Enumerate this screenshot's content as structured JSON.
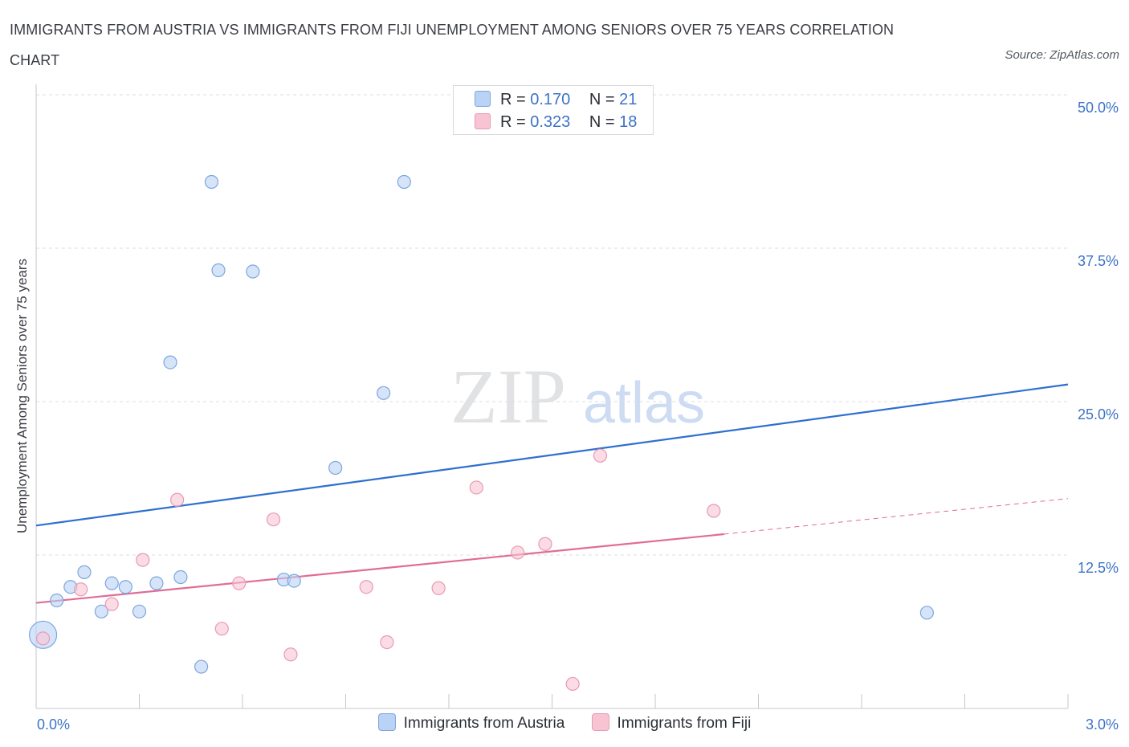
{
  "title": "IMMIGRANTS FROM AUSTRIA VS IMMIGRANTS FROM FIJI UNEMPLOYMENT AMONG SENIORS OVER 75 YEARS CORRELATION CHART",
  "source": "Source: ZipAtlas.com",
  "watermark": {
    "zip": "ZIP",
    "atlas": "atlas"
  },
  "legend_top": [
    {
      "r_label": "R =",
      "r_value": "0.170",
      "n_label": "N =",
      "n_value": "21"
    },
    {
      "r_label": "R =",
      "r_value": "0.323",
      "n_label": "N =",
      "n_value": "18"
    }
  ],
  "colors": {
    "austria_fill": "#b9d2f5",
    "austria_stroke": "#7ea6dd",
    "austria_line": "#2f6fd0",
    "fiji_fill": "#f8c4d4",
    "fiji_stroke": "#e89ab3",
    "fiji_line": "#e06d96",
    "axis_text": "#3d73c6",
    "grid": "#d9dce1"
  },
  "chart_data": {
    "type": "scatter",
    "title": "IMMIGRANTS FROM AUSTRIA VS IMMIGRANTS FROM FIJI UNEMPLOYMENT AMONG SENIORS OVER 75 YEARS CORRELATION CHART",
    "xlabel": "",
    "ylabel": "Unemployment Among Seniors over 75 years",
    "xlim": [
      0,
      3.0
    ],
    "ylim": [
      0,
      50.0
    ],
    "x_tick_labels": [
      "0.0%",
      "3.0%"
    ],
    "y_ticks": [
      12.5,
      25.0,
      37.5,
      50.0
    ],
    "y_tick_labels": [
      "12.5%",
      "25.0%",
      "37.5%",
      "50.0%"
    ],
    "grid": "horizontal dashed",
    "legend_position": "bottom",
    "series": [
      {
        "name": "Immigrants from Austria",
        "r": 0.17,
        "n": 21,
        "points": [
          {
            "x": 0.02,
            "y": 6.0,
            "big": true
          },
          {
            "x": 0.06,
            "y": 8.8
          },
          {
            "x": 0.1,
            "y": 9.9
          },
          {
            "x": 0.14,
            "y": 11.1
          },
          {
            "x": 0.19,
            "y": 7.9
          },
          {
            "x": 0.22,
            "y": 10.2
          },
          {
            "x": 0.26,
            "y": 9.9
          },
          {
            "x": 0.3,
            "y": 7.9
          },
          {
            "x": 0.35,
            "y": 10.2
          },
          {
            "x": 0.39,
            "y": 28.2
          },
          {
            "x": 0.42,
            "y": 10.7
          },
          {
            "x": 0.48,
            "y": 3.4
          },
          {
            "x": 0.51,
            "y": 42.9
          },
          {
            "x": 0.53,
            "y": 35.7
          },
          {
            "x": 0.63,
            "y": 35.6
          },
          {
            "x": 0.72,
            "y": 10.5
          },
          {
            "x": 0.75,
            "y": 10.4
          },
          {
            "x": 0.87,
            "y": 19.6
          },
          {
            "x": 1.01,
            "y": 25.7
          },
          {
            "x": 1.07,
            "y": 42.9
          },
          {
            "x": 2.59,
            "y": 7.8
          }
        ],
        "trend": {
          "x0": 0.0,
          "y0": 14.9,
          "x1": 3.0,
          "y1": 26.4
        }
      },
      {
        "name": "Immigrants from Fiji",
        "r": 0.323,
        "n": 18,
        "points": [
          {
            "x": 0.02,
            "y": 5.7
          },
          {
            "x": 0.13,
            "y": 9.7
          },
          {
            "x": 0.22,
            "y": 8.5
          },
          {
            "x": 0.31,
            "y": 12.1
          },
          {
            "x": 0.41,
            "y": 17.0
          },
          {
            "x": 0.54,
            "y": 6.5
          },
          {
            "x": 0.59,
            "y": 10.2
          },
          {
            "x": 0.69,
            "y": 15.4
          },
          {
            "x": 0.74,
            "y": 4.4
          },
          {
            "x": 0.96,
            "y": 9.9
          },
          {
            "x": 1.02,
            "y": 5.4
          },
          {
            "x": 1.17,
            "y": 9.8
          },
          {
            "x": 1.28,
            "y": 18.0
          },
          {
            "x": 1.4,
            "y": 12.7
          },
          {
            "x": 1.48,
            "y": 13.4
          },
          {
            "x": 1.56,
            "y": 2.0
          },
          {
            "x": 1.64,
            "y": 20.6
          },
          {
            "x": 1.97,
            "y": 16.1
          }
        ],
        "trend": {
          "x0": 0.0,
          "y0": 8.6,
          "x1": 2.0,
          "y1": 14.2,
          "dash_to_x": 3.0,
          "dash_to_y": 17.1
        }
      }
    ]
  }
}
